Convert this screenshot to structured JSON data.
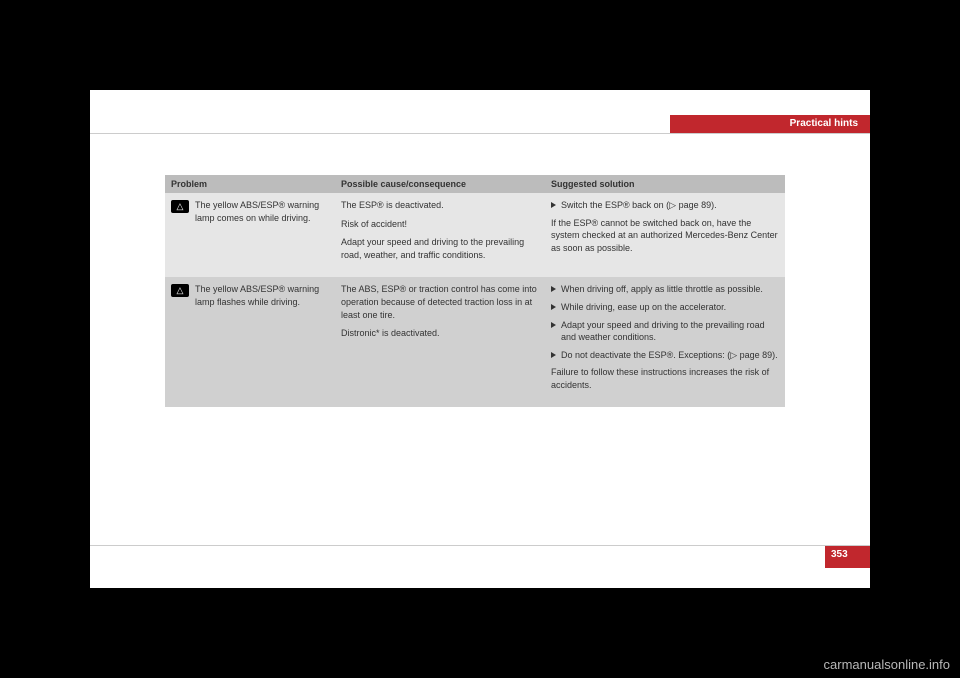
{
  "header": {
    "section_title": "Practical hints"
  },
  "table": {
    "headers": {
      "problem": "Problem",
      "cause": "Possible cause/consequence",
      "solution": "Suggested solution"
    },
    "rows": [
      {
        "problem": "The yellow ABS/ESP® warning lamp comes on while driving.",
        "cause": {
          "p1": "The ESP® is deactivated.",
          "p2": "Risk of accident!",
          "p3": "Adapt your speed and driving to the prevailing road, weather, and traffic conditions."
        },
        "solution": {
          "item1": "Switch the ESP® back on (▷ page 89).",
          "note": "If the ESP® cannot be switched back on, have the system checked at an authorized Mercedes-Benz Center as soon as possible."
        }
      },
      {
        "problem": "The yellow ABS/ESP® warning lamp flashes while driving.",
        "cause": {
          "p1": "The ABS, ESP® or traction control has come into operation because of detected traction loss in at least one tire.",
          "p2": "Distronic* is deactivated."
        },
        "solution": {
          "item1": "When driving off, apply as little throttle as possible.",
          "item2": "While driving, ease up on the accelerator.",
          "item3": "Adapt your speed and driving to the prevailing road and weather conditions.",
          "item4": "Do not deactivate the ESP®. Exceptions: (▷ page 89).",
          "note": "Failure to follow these instructions increases the risk of accidents."
        }
      }
    ]
  },
  "page_number": "353",
  "watermark": "carmanualsonline.info",
  "colors": {
    "brand_red": "#c1272d",
    "header_gray": "#bcbcbc",
    "row_light": "#e6e6e6",
    "row_dark": "#d0d0d0",
    "page_bg": "#ffffff",
    "outer_bg": "#000000"
  }
}
